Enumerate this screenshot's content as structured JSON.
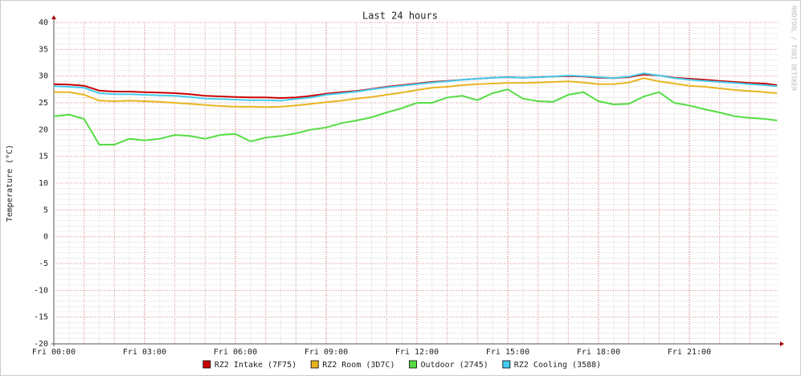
{
  "chart_data": {
    "type": "line",
    "title": "Last 24 hours",
    "y_label": "Temperature (°C)",
    "watermark": "RRDTOOL / TOBI OETIKER",
    "x": [
      0,
      0.5,
      1,
      1.5,
      2,
      2.5,
      3,
      3.5,
      4,
      4.5,
      5,
      5.5,
      6,
      6.5,
      7,
      7.5,
      8,
      8.5,
      9,
      9.5,
      10,
      10.5,
      11,
      11.5,
      12,
      12.5,
      13,
      13.5,
      14,
      14.5,
      15,
      15.5,
      16,
      16.5,
      17,
      17.5,
      18,
      18.5,
      19,
      19.5,
      20,
      20.5,
      21,
      21.5,
      22,
      22.5,
      23,
      23.5,
      23.9
    ],
    "xlim": [
      0,
      23.92
    ],
    "xticks": [
      {
        "value": 0,
        "label": "Fri 00:00"
      },
      {
        "value": 3,
        "label": "Fri 03:00"
      },
      {
        "value": 6,
        "label": "Fri 06:00"
      },
      {
        "value": 9,
        "label": "Fri 09:00"
      },
      {
        "value": 12,
        "label": "Fri 12:00"
      },
      {
        "value": 15,
        "label": "Fri 15:00"
      },
      {
        "value": 18,
        "label": "Fri 18:00"
      },
      {
        "value": 21,
        "label": "Fri 21:00"
      }
    ],
    "ylim": [
      -20,
      40
    ],
    "yticks": [
      -20,
      -15,
      -10,
      -5,
      0,
      5,
      10,
      15,
      20,
      25,
      30,
      35,
      40
    ],
    "grid": true,
    "series": [
      {
        "name": "RZ2 Intake (7F75)",
        "color": "#cc0000",
        "values": [
          28.5,
          28.4,
          28.2,
          27.3,
          27.1,
          27.1,
          27,
          26.9,
          26.8,
          26.6,
          26.3,
          26.2,
          26.1,
          26,
          26,
          25.9,
          26,
          26.3,
          26.7,
          27,
          27.2,
          27.6,
          28,
          28.3,
          28.6,
          28.9,
          29.1,
          29.3,
          29.5,
          29.7,
          29.8,
          29.7,
          29.8,
          29.9,
          30,
          29.9,
          29.7,
          29.6,
          29.8,
          30.3,
          30.1,
          29.7,
          29.5,
          29.3,
          29.1,
          28.9,
          28.7,
          28.6,
          28.3
        ]
      },
      {
        "name": "RZ2 Room (3D7C)",
        "color": "#e8b520",
        "values": [
          27,
          27,
          26.5,
          25.4,
          25.3,
          25.4,
          25.3,
          25.2,
          25,
          24.8,
          24.6,
          24.4,
          24.3,
          24.3,
          24.2,
          24.3,
          24.5,
          24.8,
          25.1,
          25.4,
          25.8,
          26.1,
          26.5,
          26.9,
          27.4,
          27.8,
          28,
          28.3,
          28.5,
          28.6,
          28.7,
          28.7,
          28.8,
          28.9,
          29,
          28.8,
          28.5,
          28.5,
          28.8,
          29.6,
          29,
          28.6,
          28.2,
          28,
          27.7,
          27.4,
          27.2,
          27,
          26.8
        ]
      },
      {
        "name": "Outdoor (2745)",
        "color": "#55dd44",
        "values": [
          22.5,
          22.8,
          22,
          17.2,
          17.2,
          18.3,
          18,
          18.3,
          19,
          18.8,
          18.3,
          19,
          19.2,
          17.8,
          18.5,
          18.8,
          19.3,
          20,
          20.4,
          21.2,
          21.7,
          22.3,
          23.2,
          24,
          25,
          25,
          26,
          26.3,
          25.5,
          26.8,
          27.5,
          25.8,
          25.3,
          25.2,
          26.5,
          27,
          25.3,
          24.7,
          24.8,
          26.2,
          27,
          25,
          24.5,
          23.8,
          23.2,
          22.5,
          22.2,
          22,
          21.7
        ]
      },
      {
        "name": "RZ2 Cooling (3588)",
        "color": "#44ccee",
        "values": [
          28.1,
          28,
          27.8,
          26.8,
          26.6,
          26.6,
          26.5,
          26.4,
          26.3,
          26.1,
          25.8,
          25.7,
          25.6,
          25.5,
          25.5,
          25.4,
          25.7,
          26,
          26.5,
          26.8,
          27.1,
          27.5,
          27.9,
          28.2,
          28.5,
          28.8,
          29,
          29.3,
          29.5,
          29.7,
          29.8,
          29.7,
          29.8,
          29.9,
          30.1,
          30,
          29.8,
          29.6,
          29.9,
          30.5,
          30.1,
          29.6,
          29.3,
          29.1,
          28.9,
          28.7,
          28.5,
          28.3,
          28.1
        ]
      }
    ]
  }
}
